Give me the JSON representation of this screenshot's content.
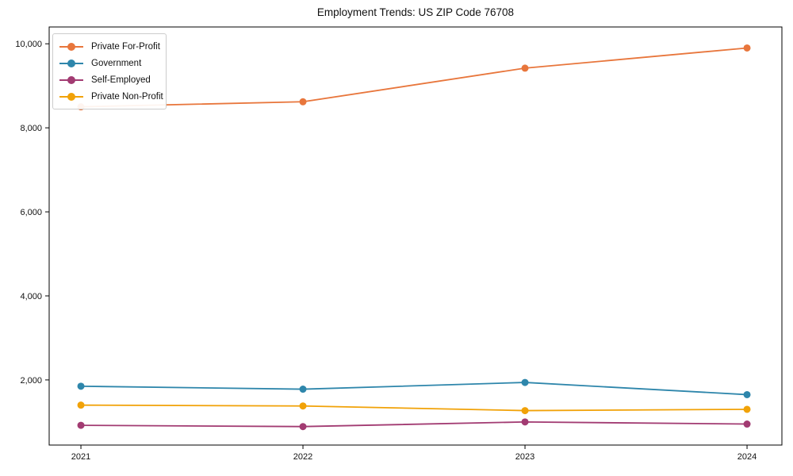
{
  "chart_data": {
    "type": "line",
    "title": "Employment Trends: US ZIP Code 76708",
    "x": [
      2021,
      2022,
      2023,
      2024
    ],
    "x_tick_labels": [
      "2021",
      "2022",
      "2023",
      "2024"
    ],
    "y_ticks": [
      2000,
      4000,
      6000,
      8000,
      10000
    ],
    "y_tick_labels": [
      "2,000",
      "4,000",
      "6,000",
      "8,000",
      "10,000"
    ],
    "xlim": [
      2020.857,
      2024.157
    ],
    "ylim": [
      450,
      10400
    ],
    "grid": false,
    "legend_position": "upper left",
    "series": [
      {
        "name": "Private For-Profit",
        "color": "#e8763c",
        "values": [
          8500,
          8620,
          9420,
          9900
        ]
      },
      {
        "name": "Government",
        "color": "#2e86ab",
        "values": [
          1850,
          1780,
          1940,
          1650
        ]
      },
      {
        "name": "Self-Employed",
        "color": "#a23b72",
        "values": [
          920,
          890,
          1000,
          950
        ]
      },
      {
        "name": "Private Non-Profit",
        "color": "#f1a208",
        "values": [
          1400,
          1380,
          1270,
          1300
        ]
      }
    ]
  }
}
